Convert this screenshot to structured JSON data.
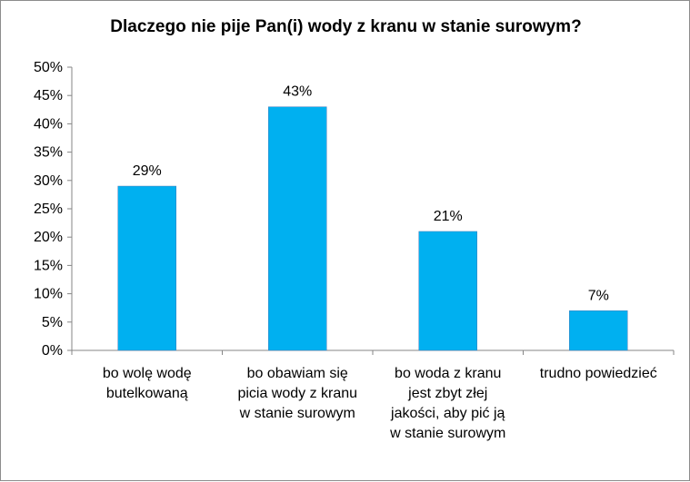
{
  "chart_data": {
    "type": "bar",
    "title": "Dlaczego nie pije Pan(i) wody z kranu w stanie surowym?",
    "categories": [
      [
        "bo wolę wodę",
        "butelkowaną"
      ],
      [
        "bo obawiam się",
        "picia wody z kranu",
        "w stanie surowym"
      ],
      [
        "bo woda z kranu",
        "jest zbyt złej",
        "jakości, aby pić ją",
        "w stanie surowym"
      ],
      [
        "trudno powiedzieć"
      ]
    ],
    "values": [
      29,
      43,
      21,
      7
    ],
    "data_labels": [
      "29%",
      "43%",
      "21%",
      "7%"
    ],
    "yticks": [
      "0%",
      "5%",
      "10%",
      "15%",
      "20%",
      "25%",
      "30%",
      "35%",
      "40%",
      "45%",
      "50%"
    ],
    "ylim": [
      0,
      50
    ],
    "bar_color": "#00b0f0",
    "axis_color": "#868686",
    "grid": false,
    "legend": "none"
  }
}
